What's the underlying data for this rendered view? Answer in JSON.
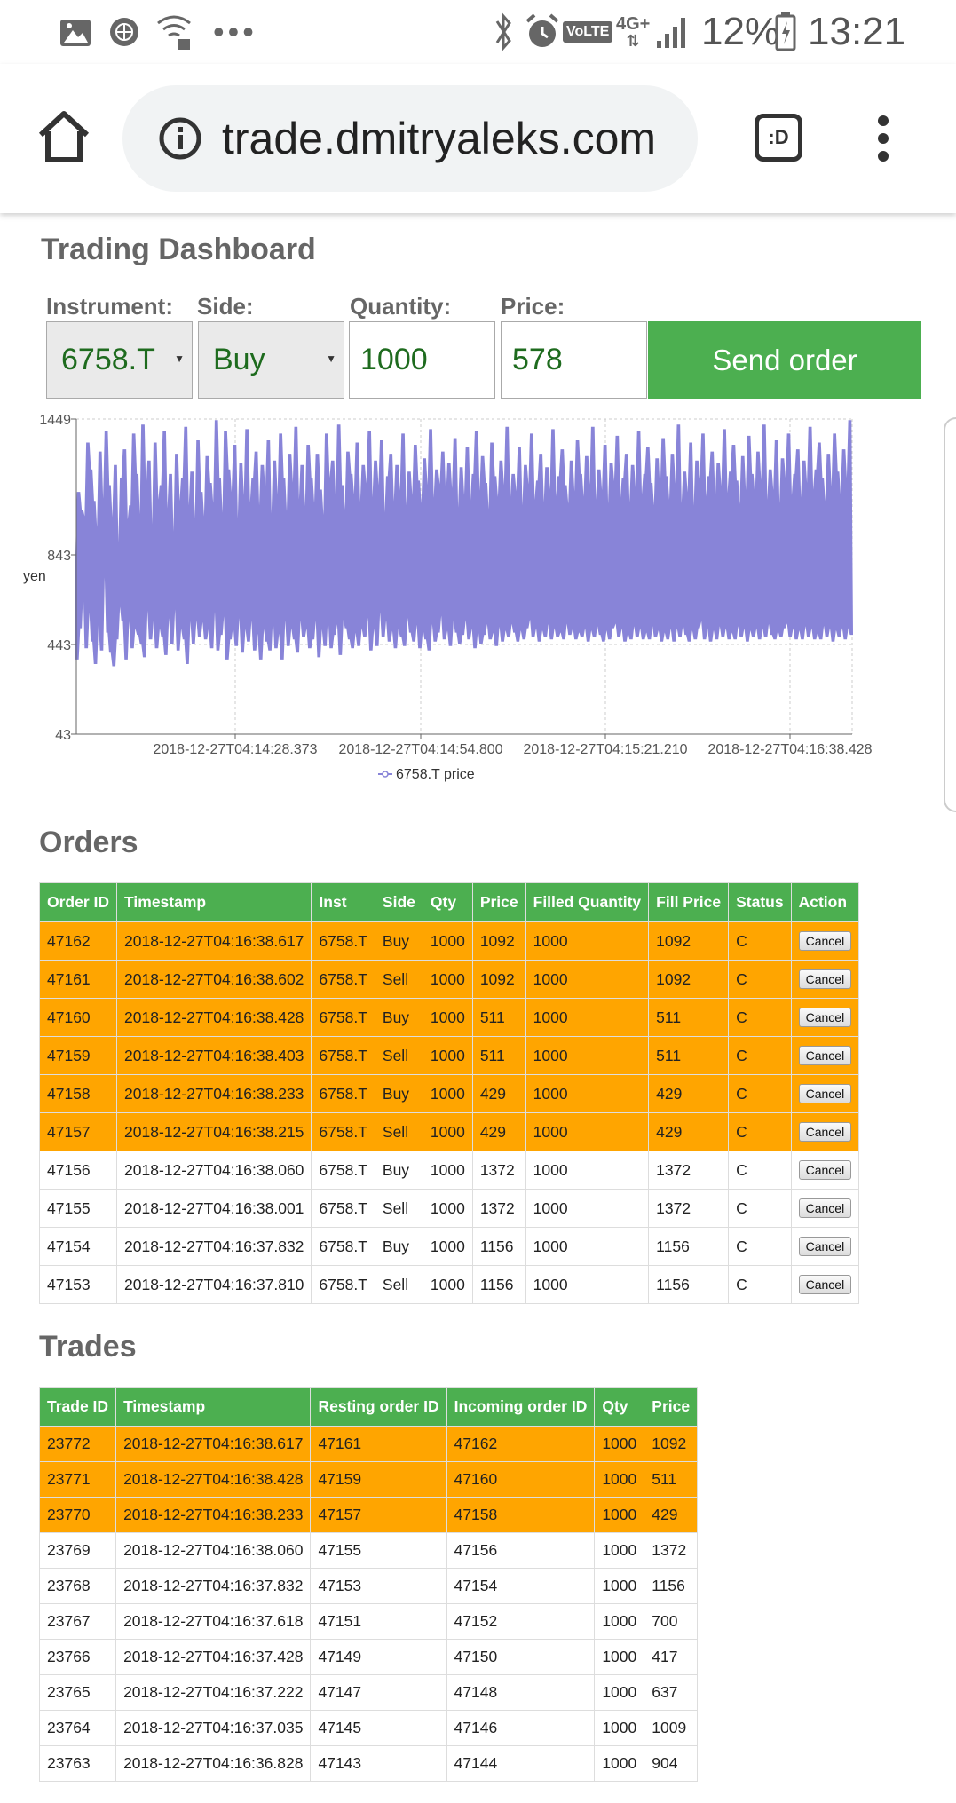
{
  "status_bar": {
    "battery": "12%",
    "time": "13:21",
    "network": "4G+",
    "volte": "VoLTE"
  },
  "browser": {
    "url": "trade.dmitryaleks.com",
    "tab_badge": ":D"
  },
  "dashboard": {
    "title": "Trading Dashboard",
    "form": {
      "instrument_label": "Instrument:",
      "instrument_value": "6758.T",
      "side_label": "Side:",
      "side_value": "Buy",
      "quantity_label": "Quantity:",
      "quantity_value": "1000",
      "price_label": "Price:",
      "price_value": "578",
      "send_label": "Send order"
    }
  },
  "chart_data": {
    "type": "area",
    "series": [
      {
        "name": "6758.T price",
        "color": "#8884d8"
      }
    ],
    "ylabel": "yen",
    "y_ticks": [
      1449,
      843,
      443,
      43
    ],
    "x_ticks": [
      "2018-12-27T04:14:28.373",
      "2018-12-27T04:14:54.800",
      "2018-12-27T04:15:21.210",
      "2018-12-27T04:16:38.428"
    ],
    "ylim": [
      43,
      1449
    ],
    "legend": "6758.T price",
    "values": [
      846,
      380,
      1120,
      520,
      1040,
      700,
      1010,
      430,
      1340,
      600,
      1220,
      460,
      1080,
      360,
      950,
      540,
      1300,
      420,
      1070,
      760,
      1390,
      500,
      1150,
      410,
      1000,
      350,
      1240,
      470,
      880,
      620,
      1180,
      550,
      1310,
      380,
      990,
      560,
      1060,
      430,
      1380,
      520,
      1200,
      490,
      1000,
      450,
      1420,
      390,
      1110,
      610,
      1260,
      470,
      950,
      560,
      1340,
      430,
      1080,
      520,
      1150,
      480,
      1390,
      400,
      1030,
      570,
      1200,
      450,
      920,
      610,
      1290,
      420,
      1070,
      520,
      1180,
      470,
      1410,
      360,
      1050,
      560,
      1210,
      450,
      990,
      560,
      1350,
      480,
      1120,
      550,
      1000,
      470,
      1280,
      520,
      1160,
      430,
      1060,
      600,
      1440,
      420,
      1180,
      490,
      1010,
      580,
      1390,
      380,
      1220,
      470,
      1110,
      530,
      1330,
      440,
      980,
      570,
      1250,
      410,
      1090,
      520,
      1400,
      460,
      1060,
      560,
      1180,
      420,
      1300,
      500,
      1050,
      380,
      1240,
      520,
      1120,
      460,
      1350,
      420,
      1010,
      580,
      1260,
      430,
      1100,
      500,
      1380,
      380,
      1180,
      560,
      1020,
      440,
      1290,
      520,
      1150,
      470,
      1410,
      410,
      1070,
      560,
      1240,
      480,
      1040,
      520,
      1330,
      430,
      1180,
      470,
      1060,
      560,
      1290,
      390,
      1130,
      520,
      1010,
      440,
      1380,
      580,
      1180,
      430,
      1260,
      490,
      1080,
      540,
      1420,
      400,
      1150,
      560,
      1030,
      520,
      1300,
      470,
      1200,
      430,
      1100,
      500,
      1340,
      440,
      1060,
      520,
      1240,
      480,
      1150,
      570,
      1390,
      420,
      1080,
      520,
      1260,
      440,
      1140,
      600,
      1350,
      480,
      1010,
      560,
      1190,
      460,
      1290,
      510,
      1070,
      430,
      1240,
      520,
      1120,
      480,
      1380,
      440,
      1050,
      570,
      1210,
      500,
      1100,
      460,
      1330,
      540,
      1170,
      430,
      1060,
      520,
      1270,
      470,
      1140,
      420,
      1400,
      540,
      1080,
      460,
      1220,
      500,
      1150,
      580,
      1300,
      470,
      1090,
      510,
      1250,
      440,
      1130,
      560,
      1360,
      500,
      1040,
      450,
      1230,
      490,
      1100,
      560,
      1320,
      470,
      1070,
      520,
      1200,
      430,
      1390,
      520,
      1110,
      450,
      1280,
      490,
      1160,
      540,
      1030,
      470,
      1340,
      500,
      1190,
      440,
      1090,
      530,
      1260,
      460,
      1140,
      510,
      1410,
      480,
      1070,
      540,
      1200,
      500,
      1120,
      460,
      1320,
      510,
      1050,
      470,
      1240,
      520,
      1150,
      560,
      1380,
      480,
      1080,
      520,
      1170,
      460,
      1290,
      510,
      1060,
      480,
      1230,
      540,
      1120,
      470,
      1400,
      520,
      1090,
      480,
      1190,
      500,
      1310,
      470,
      1150,
      540,
      1060,
      490,
      1260,
      520,
      1110,
      470,
      1350,
      500,
      1200,
      480,
      1090,
      520,
      1280,
      460,
      1140,
      510,
      1410,
      480,
      1070,
      530,
      1220,
      490,
      1120,
      460,
      1330,
      510,
      1050,
      470,
      1250,
      520,
      1160,
      540,
      1370,
      480,
      1080,
      520,
      1180,
      460,
      1290,
      500,
      1060,
      470,
      1240,
      530,
      1130,
      480,
      1390,
      520,
      1100,
      470,
      1200,
      500,
      1320,
      470,
      1160,
      530,
      1050,
      480,
      1270,
      510,
      1110,
      460,
      1360,
      500,
      1190,
      470,
      1080,
      520,
      1290,
      460,
      1150,
      520,
      1420,
      480,
      1060,
      540,
      1210,
      490,
      1110,
      460,
      1340,
      510,
      1040,
      470,
      1260,
      520,
      1170,
      550,
      1380,
      470,
      1090,
      520,
      1190,
      460,
      1300,
      510,
      1070,
      470,
      1250,
      530,
      1140,
      480,
      1400,
      520,
      1110,
      470,
      1210,
      500,
      1330,
      470,
      1170,
      530,
      1060,
      480,
      1280,
      520,
      1120,
      460,
      1370,
      510,
      1200,
      480,
      1090,
      520,
      1300,
      470,
      1160,
      520,
      1420,
      480,
      1070,
      540,
      1220,
      490,
      1120,
      470,
      1350,
      510,
      1050,
      480,
      1270,
      520,
      1180,
      540,
      1380,
      480,
      1100,
      520,
      1200,
      470,
      1310,
      510,
      1080,
      470,
      1260,
      530,
      1150,
      480,
      1410,
      520,
      1120,
      470,
      1220,
      500,
      1340,
      470,
      1180,
      530,
      1070,
      480,
      1290,
      520,
      1130,
      460,
      1380,
      510,
      1210,
      480,
      1100,
      520,
      1310,
      470,
      1170,
      520,
      1440,
      490
    ]
  },
  "orders": {
    "title": "Orders",
    "columns": [
      "Order ID",
      "Timestamp",
      "Inst",
      "Side",
      "Qty",
      "Price",
      "Filled Quantity",
      "Fill Price",
      "Status",
      "Action"
    ],
    "cancel_label": "Cancel",
    "rows": [
      [
        "47162",
        "2018-12-27T04:16:38.617",
        "6758.T",
        "Buy",
        "1000",
        "1092",
        "1000",
        "1092",
        "C"
      ],
      [
        "47161",
        "2018-12-27T04:16:38.602",
        "6758.T",
        "Sell",
        "1000",
        "1092",
        "1000",
        "1092",
        "C"
      ],
      [
        "47160",
        "2018-12-27T04:16:38.428",
        "6758.T",
        "Buy",
        "1000",
        "511",
        "1000",
        "511",
        "C"
      ],
      [
        "47159",
        "2018-12-27T04:16:38.403",
        "6758.T",
        "Sell",
        "1000",
        "511",
        "1000",
        "511",
        "C"
      ],
      [
        "47158",
        "2018-12-27T04:16:38.233",
        "6758.T",
        "Buy",
        "1000",
        "429",
        "1000",
        "429",
        "C"
      ],
      [
        "47157",
        "2018-12-27T04:16:38.215",
        "6758.T",
        "Sell",
        "1000",
        "429",
        "1000",
        "429",
        "C"
      ],
      [
        "47156",
        "2018-12-27T04:16:38.060",
        "6758.T",
        "Buy",
        "1000",
        "1372",
        "1000",
        "1372",
        "C"
      ],
      [
        "47155",
        "2018-12-27T04:16:38.001",
        "6758.T",
        "Sell",
        "1000",
        "1372",
        "1000",
        "1372",
        "C"
      ],
      [
        "47154",
        "2018-12-27T04:16:37.832",
        "6758.T",
        "Buy",
        "1000",
        "1156",
        "1000",
        "1156",
        "C"
      ],
      [
        "47153",
        "2018-12-27T04:16:37.810",
        "6758.T",
        "Sell",
        "1000",
        "1156",
        "1000",
        "1156",
        "C"
      ]
    ],
    "highlight_count": 6
  },
  "trades": {
    "title": "Trades",
    "columns": [
      "Trade ID",
      "Timestamp",
      "Resting order ID",
      "Incoming order ID",
      "Qty",
      "Price"
    ],
    "rows": [
      [
        "23772",
        "2018-12-27T04:16:38.617",
        "47161",
        "47162",
        "1000",
        "1092"
      ],
      [
        "23771",
        "2018-12-27T04:16:38.428",
        "47159",
        "47160",
        "1000",
        "511"
      ],
      [
        "23770",
        "2018-12-27T04:16:38.233",
        "47157",
        "47158",
        "1000",
        "429"
      ],
      [
        "23769",
        "2018-12-27T04:16:38.060",
        "47155",
        "47156",
        "1000",
        "1372"
      ],
      [
        "23768",
        "2018-12-27T04:16:37.832",
        "47153",
        "47154",
        "1000",
        "1156"
      ],
      [
        "23767",
        "2018-12-27T04:16:37.618",
        "47151",
        "47152",
        "1000",
        "700"
      ],
      [
        "23766",
        "2018-12-27T04:16:37.428",
        "47149",
        "47150",
        "1000",
        "417"
      ],
      [
        "23765",
        "2018-12-27T04:16:37.222",
        "47147",
        "47148",
        "1000",
        "637"
      ],
      [
        "23764",
        "2018-12-27T04:16:37.035",
        "47145",
        "47146",
        "1000",
        "1009"
      ],
      [
        "23763",
        "2018-12-27T04:16:36.828",
        "47143",
        "47144",
        "1000",
        "904"
      ]
    ],
    "highlight_count": 3
  }
}
